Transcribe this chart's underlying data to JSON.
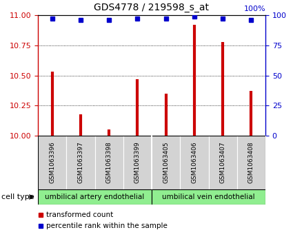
{
  "title": "GDS4778 / 219598_s_at",
  "samples": [
    "GSM1063396",
    "GSM1063397",
    "GSM1063398",
    "GSM1063399",
    "GSM1063405",
    "GSM1063406",
    "GSM1063407",
    "GSM1063408"
  ],
  "transformed_counts": [
    10.53,
    10.18,
    10.05,
    10.47,
    10.35,
    10.92,
    10.78,
    10.37
  ],
  "percentile_ranks": [
    97,
    96,
    96,
    97,
    97,
    99,
    97,
    96
  ],
  "ylim_left": [
    10.0,
    11.0
  ],
  "yticks_left": [
    10.0,
    10.25,
    10.5,
    10.75,
    11.0
  ],
  "ylim_right": [
    0,
    100
  ],
  "yticks_right": [
    0,
    25,
    50,
    75,
    100
  ],
  "bar_color": "#cc0000",
  "dot_color": "#0000cc",
  "cell_type_groups": [
    {
      "label": "umbilical artery endothelial",
      "n_samples": 4,
      "color": "#90ee90"
    },
    {
      "label": "umbilical vein endothelial",
      "n_samples": 4,
      "color": "#90ee90"
    }
  ],
  "cell_type_label": "cell type",
  "legend_bar_label": "transformed count",
  "legend_dot_label": "percentile rank within the sample",
  "bar_color_red": "#cc0000",
  "dot_color_blue": "#0000cc",
  "tick_color_left": "#cc0000",
  "tick_color_right": "#0000cc",
  "sample_box_color": "#d3d3d3",
  "grid_yticks": [
    10.25,
    10.5,
    10.75
  ],
  "separator_after": 3,
  "bar_linewidth": 3
}
